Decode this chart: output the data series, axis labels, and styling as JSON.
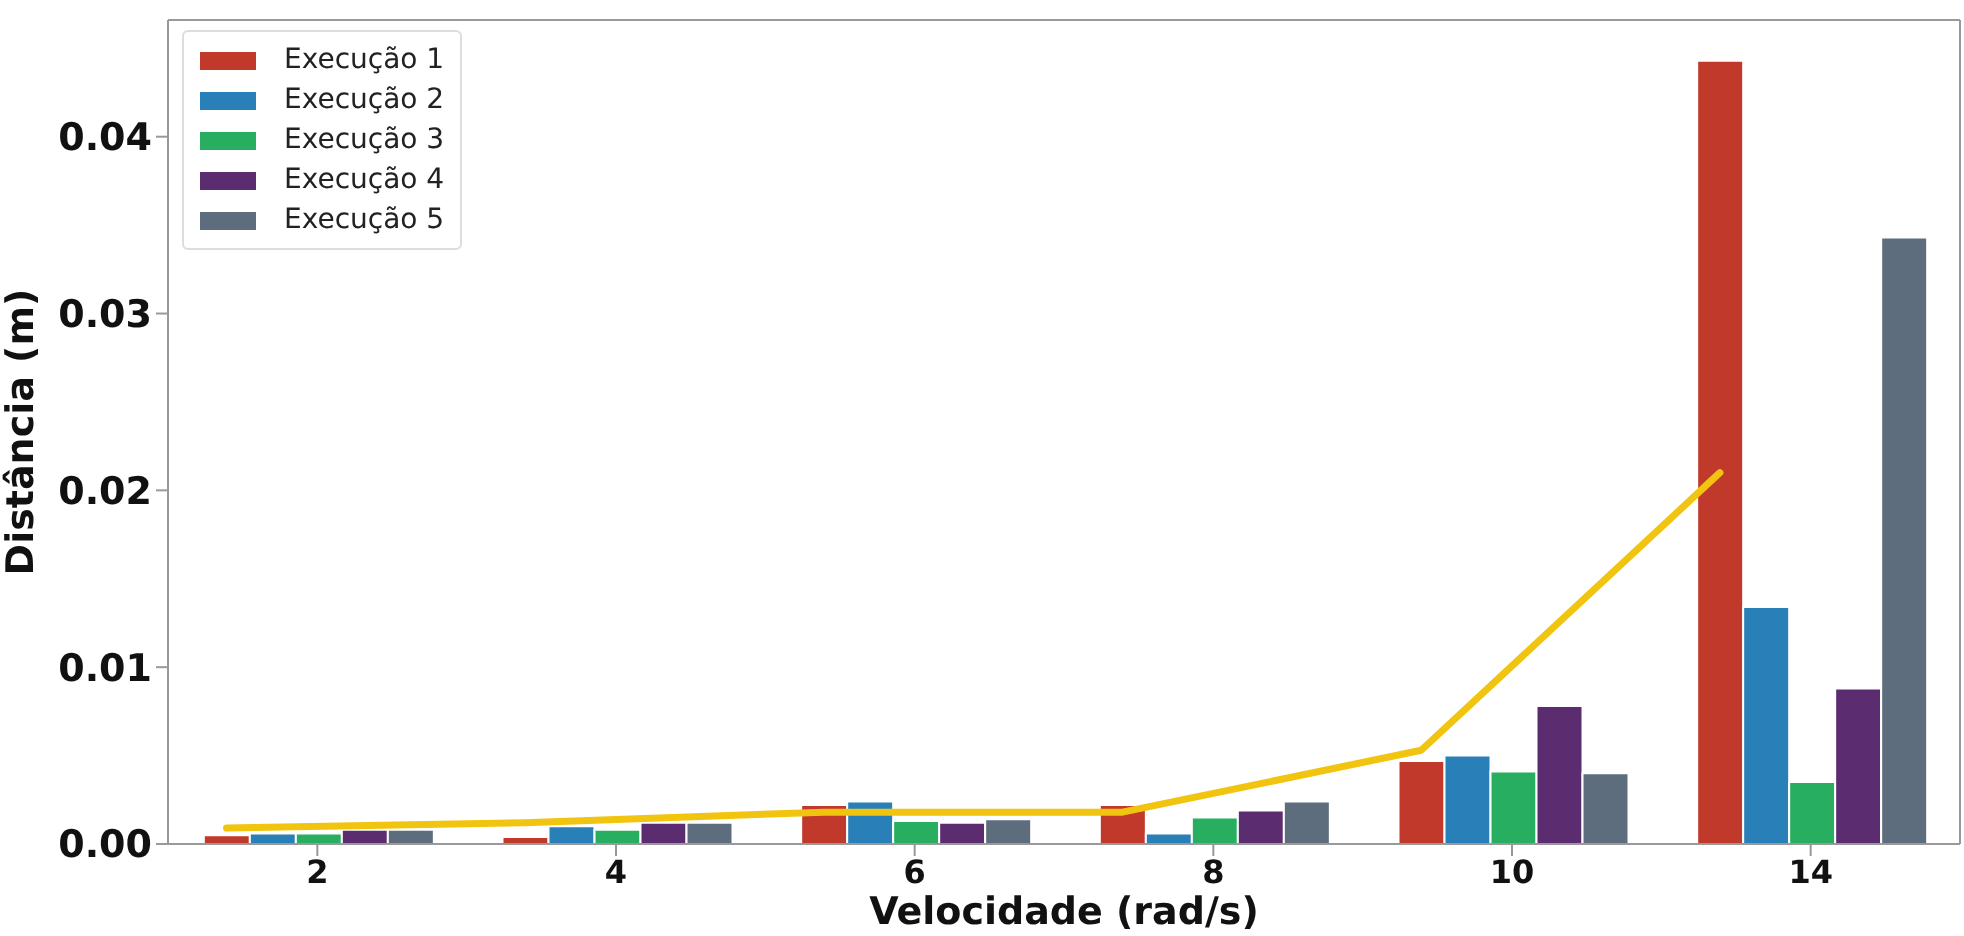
{
  "chart_data": {
    "type": "bar",
    "xlabel": "Velocidade (rad/s)",
    "ylabel": "Distância (m)",
    "categories": [
      "2",
      "4",
      "6",
      "8",
      "10",
      "14"
    ],
    "series": [
      {
        "name": "Execução 1",
        "color": "#c0392b",
        "values": [
          0.0005,
          0.0004,
          0.0022,
          0.0022,
          0.0047,
          0.0443
        ]
      },
      {
        "name": "Execução 2",
        "color": "#2980b9",
        "values": [
          0.0006,
          0.001,
          0.0024,
          0.0006,
          0.005,
          0.0134
        ]
      },
      {
        "name": "Execução 3",
        "color": "#27ae60",
        "values": [
          0.0006,
          0.0008,
          0.0013,
          0.0015,
          0.0041,
          0.0035
        ]
      },
      {
        "name": "Execução 4",
        "color": "#5b2c6f",
        "values": [
          0.0008,
          0.0012,
          0.0012,
          0.0019,
          0.0078,
          0.0088
        ]
      },
      {
        "name": "Execução 5",
        "color": "#5d6d7e",
        "values": [
          0.0008,
          0.0012,
          0.0014,
          0.0024,
          0.004,
          0.0343
        ]
      },
      {
        "type": "line",
        "color": "#f1c40f",
        "values": [
          0.0009,
          0.0012,
          0.0018,
          0.0018,
          0.0053,
          0.021
        ]
      }
    ],
    "ylim": [
      0,
      0.0466
    ],
    "yticks": [
      {
        "value": 0,
        "label": "0.00"
      },
      {
        "value": 0.01,
        "label": "0.01"
      },
      {
        "value": 0.02,
        "label": "0.02"
      },
      {
        "value": 0.03,
        "label": "0.03"
      },
      {
        "value": 0.04,
        "label": "0.04"
      }
    ],
    "grid": false,
    "legend": "top left",
    "marker": "none"
  }
}
